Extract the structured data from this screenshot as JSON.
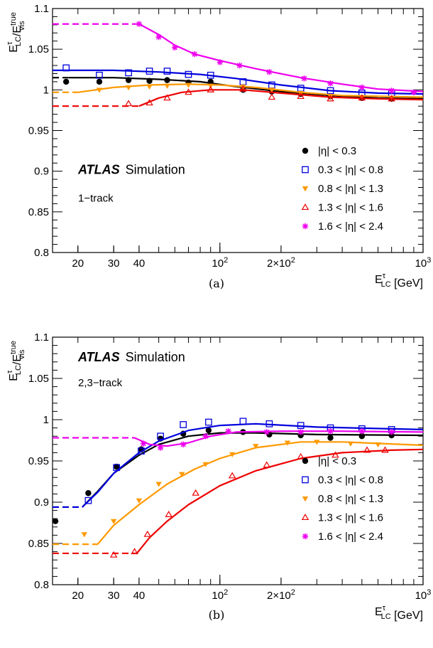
{
  "chart_data": [
    {
      "type": "line",
      "panel_label": "(a)",
      "atlas_label": "ATLAS",
      "sim_label": "Simulation",
      "category_label": "1−track",
      "xlabel": "E_LC^τ [GeV]",
      "ylabel": "E_LC^τ/E_vis^true",
      "xscale": "log",
      "xlim": [
        15,
        1000
      ],
      "ylim": [
        0.8,
        1.1
      ],
      "xticks": [
        20,
        30,
        40,
        100,
        200,
        1000
      ],
      "xtick_labels": [
        "20",
        "30",
        "40",
        "10^2",
        "2×10^2",
        "10^3"
      ],
      "yticks": [
        0.8,
        0.85,
        0.9,
        0.95,
        1.0,
        1.05,
        1.1
      ],
      "ytick_labels": [
        "0.8",
        "0.85",
        "0.9",
        "0.95",
        "1",
        "1.05",
        "1.1"
      ],
      "legend_position": "right",
      "series": [
        {
          "name": "|η| < 0.3",
          "color": "#000000",
          "marker": "circle-filled",
          "points": [
            [
              17.5,
              1.01
            ],
            [
              25.5,
              1.01
            ],
            [
              35.5,
              1.012
            ],
            [
              45,
              1.011
            ],
            [
              55,
              1.012
            ],
            [
              70,
              1.009
            ],
            [
              90,
              1.01
            ],
            [
              130,
              1.0
            ],
            [
              180,
              0.998
            ],
            [
              250,
              0.995
            ],
            [
              350,
              0.992
            ],
            [
              500,
              0.99
            ],
            [
              700,
              0.989
            ]
          ],
          "flat_until": 18,
          "flat_value": 1.015,
          "fit": [
            [
              18,
              1.015
            ],
            [
              30,
              1.015
            ],
            [
              50,
              1.013
            ],
            [
              80,
              1.01
            ],
            [
              120,
              1.004
            ],
            [
              200,
              0.998
            ],
            [
              350,
              0.993
            ],
            [
              600,
              0.99
            ],
            [
              1000,
              0.989
            ]
          ]
        },
        {
          "name": "0.3 < |η| < 0.8",
          "color": "#0000dd",
          "marker": "square-open",
          "points": [
            [
              17.5,
              1.027
            ],
            [
              25.5,
              1.018
            ],
            [
              35.5,
              1.021
            ],
            [
              45,
              1.023
            ],
            [
              55,
              1.023
            ],
            [
              70,
              1.019
            ],
            [
              90,
              1.018
            ],
            [
              130,
              1.01
            ],
            [
              180,
              1.006
            ],
            [
              250,
              1.002
            ],
            [
              350,
              0.999
            ],
            [
              500,
              0.996
            ],
            [
              700,
              0.996
            ]
          ],
          "flat_until": 15,
          "flat_value": 1.024,
          "fit": [
            [
              15,
              1.024
            ],
            [
              30,
              1.024
            ],
            [
              50,
              1.022
            ],
            [
              80,
              1.019
            ],
            [
              120,
              1.014
            ],
            [
              200,
              1.006
            ],
            [
              350,
              0.999
            ],
            [
              600,
              0.996
            ],
            [
              1000,
              0.995
            ]
          ]
        },
        {
          "name": "0.8 < |η| < 1.3",
          "color": "#ff9900",
          "marker": "triangle-down-filled",
          "points": [
            [
              25.5,
              1.0
            ],
            [
              35.5,
              1.003
            ],
            [
              45,
              1.004
            ],
            [
              55,
              1.005
            ],
            [
              70,
              1.006
            ],
            [
              90,
              1.005
            ],
            [
              130,
              1.004
            ],
            [
              180,
              1.0
            ],
            [
              250,
              0.996
            ],
            [
              350,
              0.992
            ],
            [
              500,
              0.991
            ],
            [
              700,
              0.99
            ]
          ],
          "flat_until": 20,
          "flat_value": 0.997,
          "fit": [
            [
              20,
              0.997
            ],
            [
              30,
              1.003
            ],
            [
              45,
              1.006
            ],
            [
              70,
              1.007
            ],
            [
              100,
              1.006
            ],
            [
              150,
              1.003
            ],
            [
              250,
              0.997
            ],
            [
              400,
              0.993
            ],
            [
              1000,
              0.991
            ]
          ]
        },
        {
          "name": "1.3 < |η| < 1.6",
          "color": "#ee0000",
          "marker": "triangle-up-open",
          "points": [
            [
              35.5,
              0.983
            ],
            [
              45,
              0.984
            ],
            [
              55,
              0.99
            ],
            [
              70,
              0.997
            ],
            [
              90,
              1.0
            ],
            [
              130,
              1.001
            ],
            [
              180,
              0.991
            ],
            [
              250,
              0.992
            ],
            [
              350,
              0.989
            ],
            [
              500,
              0.99
            ],
            [
              700,
              0.989
            ]
          ],
          "flat_until": 40,
          "flat_value": 0.98,
          "fit": [
            [
              40,
              0.98
            ],
            [
              50,
              0.99
            ],
            [
              65,
              0.997
            ],
            [
              90,
              1.0
            ],
            [
              130,
              1.0
            ],
            [
              200,
              0.996
            ],
            [
              350,
              0.991
            ],
            [
              600,
              0.989
            ],
            [
              1000,
              0.988
            ]
          ]
        },
        {
          "name": "1.6 < |η| < 2.4",
          "color": "#ee00ee",
          "marker": "star",
          "points": [
            [
              40,
              1.081
            ],
            [
              50,
              1.065
            ],
            [
              60,
              1.052
            ],
            [
              75,
              1.044
            ],
            [
              100,
              1.034
            ],
            [
              125,
              1.03
            ],
            [
              175,
              1.022
            ],
            [
              260,
              1.014
            ],
            [
              350,
              1.008
            ],
            [
              500,
              1.003
            ],
            [
              700,
              0.999
            ],
            [
              900,
              0.997
            ]
          ],
          "flat_until": 40,
          "flat_value": 1.081,
          "fit": [
            [
              40,
              1.081
            ],
            [
              50,
              1.068
            ],
            [
              60,
              1.055
            ],
            [
              75,
              1.044
            ],
            [
              100,
              1.036
            ],
            [
              150,
              1.026
            ],
            [
              250,
              1.015
            ],
            [
              400,
              1.007
            ],
            [
              600,
              1.001
            ],
            [
              1000,
              0.998
            ]
          ]
        }
      ]
    },
    {
      "type": "line",
      "panel_label": "(b)",
      "atlas_label": "ATLAS",
      "sim_label": "Simulation",
      "category_label": "2,3−track",
      "xlabel": "E_LC^τ [GeV]",
      "ylabel": "E_LC^τ/E_vis^true",
      "xscale": "log",
      "xlim": [
        15,
        1000
      ],
      "ylim": [
        0.8,
        1.1
      ],
      "xticks": [
        20,
        30,
        40,
        100,
        200,
        1000
      ],
      "xtick_labels": [
        "20",
        "30",
        "40",
        "10^2",
        "2×10^2",
        "10^3"
      ],
      "yticks": [
        0.8,
        0.85,
        0.9,
        0.95,
        1.0,
        1.05,
        1.1
      ],
      "ytick_labels": [
        "0.8",
        "0.85",
        "0.9",
        "0.95",
        "1",
        "1.05",
        "1.1"
      ],
      "legend_position": "lower right",
      "series": [
        {
          "name": "|η| < 0.3",
          "color": "#000000",
          "marker": "circle-filled",
          "points": [
            [
              15.5,
              0.877
            ],
            [
              22.5,
              0.911
            ],
            [
              31,
              0.943
            ],
            [
              41,
              0.964
            ],
            [
              51,
              0.977
            ],
            [
              66,
              0.983
            ],
            [
              88,
              0.987
            ],
            [
              130,
              0.985
            ],
            [
              175,
              0.982
            ],
            [
              250,
              0.981
            ],
            [
              350,
              0.978
            ],
            [
              500,
              0.98
            ],
            [
              700,
              0.981
            ]
          ],
          "flat_until": 21,
          "flat_value": 0.894,
          "fit": [
            [
              21,
              0.894
            ],
            [
              25,
              0.913
            ],
            [
              30,
              0.935
            ],
            [
              40,
              0.957
            ],
            [
              50,
              0.97
            ],
            [
              70,
              0.98
            ],
            [
              100,
              0.984
            ],
            [
              150,
              0.984
            ],
            [
              300,
              0.982
            ],
            [
              1000,
              0.981
            ]
          ]
        },
        {
          "name": "0.3 < |η| < 0.8",
          "color": "#0000dd",
          "marker": "square-open",
          "points": [
            [
              22.5,
              0.902
            ],
            [
              31,
              0.942
            ],
            [
              41,
              0.962
            ],
            [
              51,
              0.98
            ],
            [
              66,
              0.994
            ],
            [
              88,
              0.997
            ],
            [
              130,
              0.998
            ],
            [
              175,
              0.995
            ],
            [
              250,
              0.993
            ],
            [
              350,
              0.99
            ],
            [
              500,
              0.989
            ],
            [
              700,
              0.988
            ]
          ],
          "flat_until": 21,
          "flat_value": 0.894,
          "fit": [
            [
              21,
              0.894
            ],
            [
              25,
              0.912
            ],
            [
              30,
              0.935
            ],
            [
              40,
              0.96
            ],
            [
              50,
              0.974
            ],
            [
              70,
              0.987
            ],
            [
              100,
              0.993
            ],
            [
              150,
              0.995
            ],
            [
              300,
              0.991
            ],
            [
              1000,
              0.988
            ]
          ]
        },
        {
          "name": "0.8 < |η| < 1.3",
          "color": "#ff9900",
          "marker": "triangle-down-filled",
          "points": [
            [
              21.5,
              0.861
            ],
            [
              30,
              0.877
            ],
            [
              40,
              0.902
            ],
            [
              50,
              0.922
            ],
            [
              65,
              0.934
            ],
            [
              85,
              0.946
            ],
            [
              115,
              0.958
            ],
            [
              150,
              0.968
            ],
            [
              215,
              0.972
            ],
            [
              300,
              0.973
            ],
            [
              440,
              0.971
            ],
            [
              600,
              0.97
            ]
          ],
          "flat_until": 25,
          "flat_value": 0.849,
          "fit": [
            [
              25,
              0.849
            ],
            [
              30,
              0.872
            ],
            [
              40,
              0.897
            ],
            [
              55,
              0.922
            ],
            [
              75,
              0.94
            ],
            [
              100,
              0.953
            ],
            [
              150,
              0.966
            ],
            [
              250,
              0.973
            ],
            [
              400,
              0.973
            ],
            [
              1000,
              0.969
            ]
          ]
        },
        {
          "name": "1.3 < |η| < 1.6",
          "color": "#ee0000",
          "marker": "triangle-up-open",
          "points": [
            [
              30,
              0.836
            ],
            [
              38,
              0.84
            ],
            [
              44,
              0.861
            ],
            [
              56,
              0.885
            ],
            [
              76,
              0.911
            ],
            [
              115,
              0.932
            ],
            [
              170,
              0.945
            ],
            [
              250,
              0.955
            ],
            [
              370,
              0.957
            ],
            [
              530,
              0.963
            ],
            [
              650,
              0.963
            ]
          ],
          "flat_until": 39,
          "flat_value": 0.838,
          "fit": [
            [
              39,
              0.838
            ],
            [
              45,
              0.857
            ],
            [
              55,
              0.877
            ],
            [
              70,
              0.897
            ],
            [
              100,
              0.92
            ],
            [
              150,
              0.938
            ],
            [
              250,
              0.953
            ],
            [
              400,
              0.96
            ],
            [
              700,
              0.963
            ],
            [
              1000,
              0.964
            ]
          ]
        },
        {
          "name": "1.6 < |η| < 2.4",
          "color": "#ee00ee",
          "marker": "star",
          "points": [
            [
              42,
              0.971
            ],
            [
              51,
              0.966
            ],
            [
              66,
              0.97
            ],
            [
              85,
              0.98
            ],
            [
              110,
              0.986
            ],
            [
              170,
              0.985
            ],
            [
              250,
              0.985
            ],
            [
              350,
              0.986
            ],
            [
              500,
              0.986
            ],
            [
              700,
              0.985
            ]
          ],
          "flat_until": 38,
          "flat_value": 0.978,
          "fit": [
            [
              38,
              0.978
            ],
            [
              45,
              0.97
            ],
            [
              55,
              0.968
            ],
            [
              70,
              0.972
            ],
            [
              90,
              0.98
            ],
            [
              120,
              0.985
            ],
            [
              200,
              0.986
            ],
            [
              400,
              0.986
            ],
            [
              1000,
              0.985
            ]
          ]
        }
      ]
    }
  ]
}
